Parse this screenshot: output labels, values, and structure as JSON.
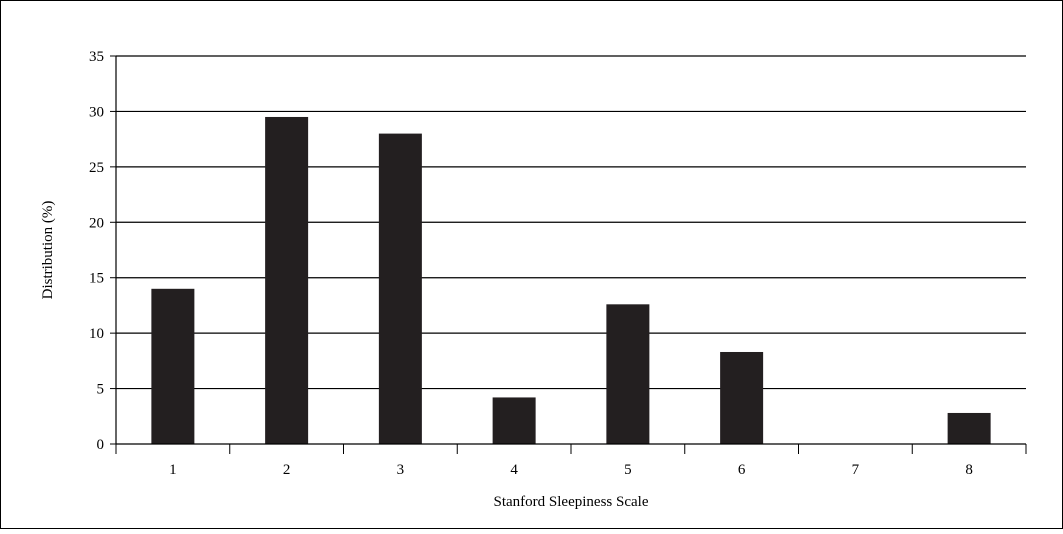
{
  "chart_data": {
    "type": "bar",
    "title": "",
    "xlabel": "Stanford Sleepiness Scale",
    "ylabel": "Distribution (%)",
    "categories": [
      "1",
      "2",
      "3",
      "4",
      "5",
      "6",
      "7",
      "8"
    ],
    "values": [
      14.0,
      29.5,
      28.0,
      4.2,
      12.6,
      8.3,
      0,
      2.8
    ],
    "ylim": [
      0,
      35
    ],
    "yticks": [
      "0",
      "5",
      "10",
      "15",
      "20",
      "25",
      "30",
      "35"
    ],
    "grid": true,
    "legend": "none",
    "bar_color": "#231f20"
  }
}
